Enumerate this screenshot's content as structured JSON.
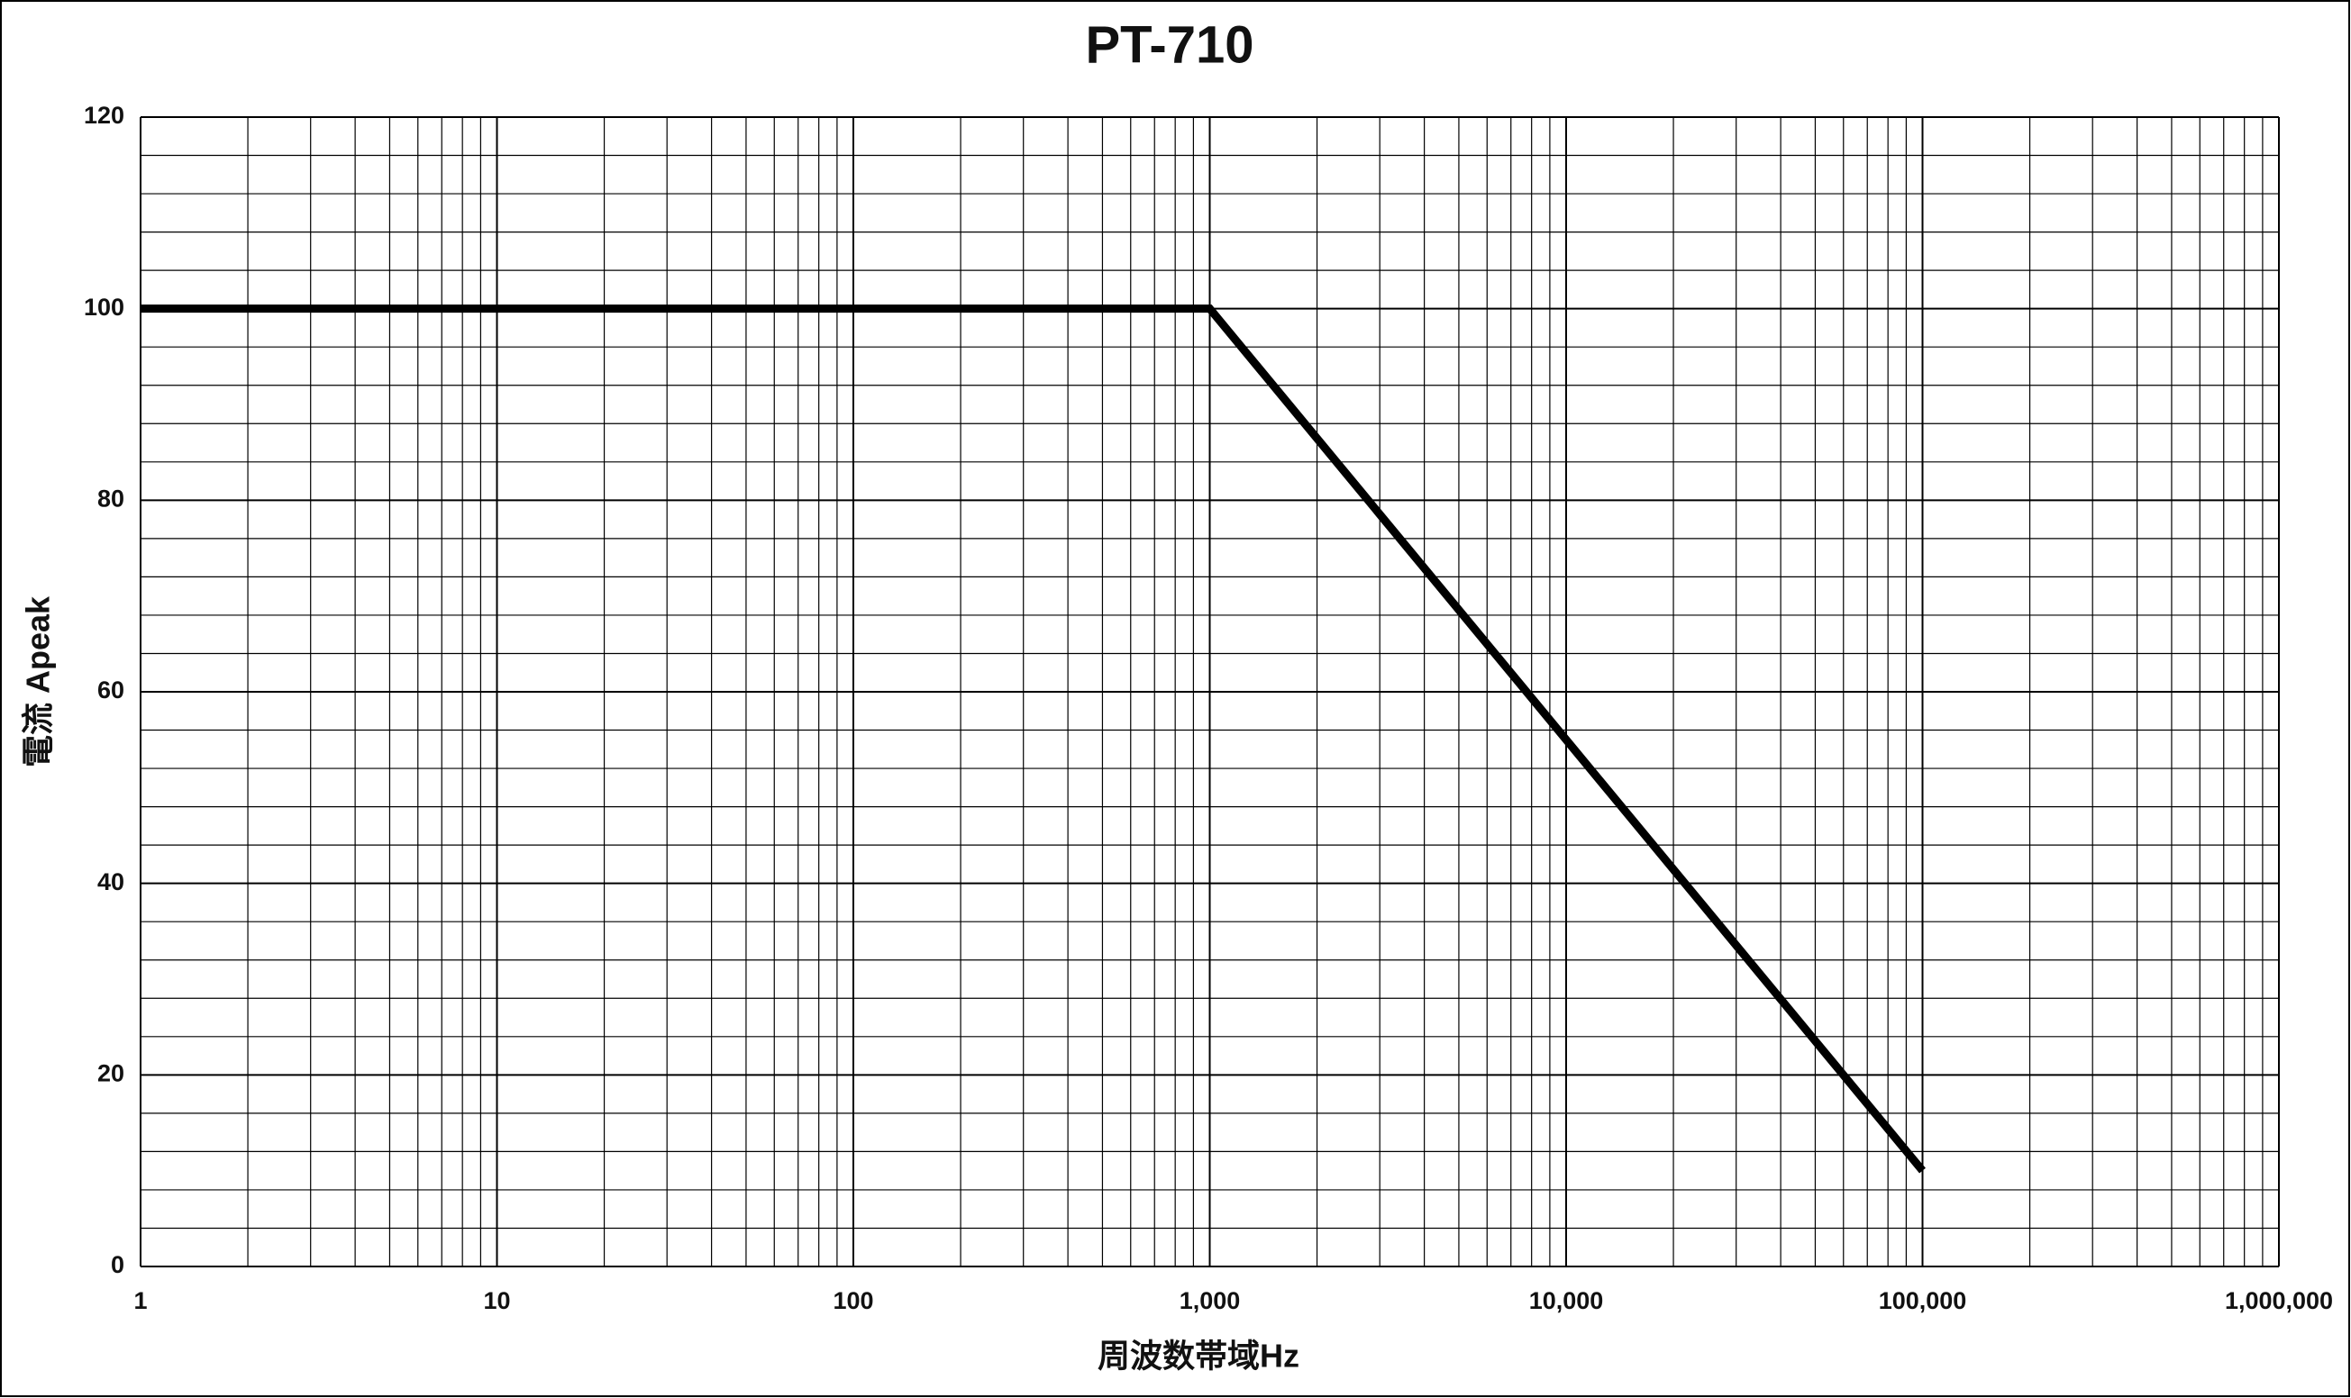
{
  "chart_data": {
    "type": "line",
    "title": "PT-710",
    "x_label": "周波数帯域Hz",
    "y_label": "電流 Apeak",
    "x": [
      1,
      1000,
      100000
    ],
    "series": [
      {
        "name": "PT-710",
        "color": "#000000",
        "values": [
          100,
          100,
          10
        ]
      }
    ],
    "xlim": [
      1,
      1000000
    ],
    "xticks": [
      1,
      10,
      100,
      {
        "value": 1000,
        "label": "1,000"
      },
      {
        "value": 10000,
        "label": "10,000"
      },
      {
        "value": 100000,
        "label": "100,000"
      },
      {
        "value": 1000000,
        "label": "1,000,000"
      }
    ],
    "ylim": [
      0,
      120
    ],
    "yticks": [
      0,
      20,
      40,
      60,
      80,
      100,
      120
    ],
    "xscale": "log",
    "grid": true,
    "minor_grid": true
  }
}
